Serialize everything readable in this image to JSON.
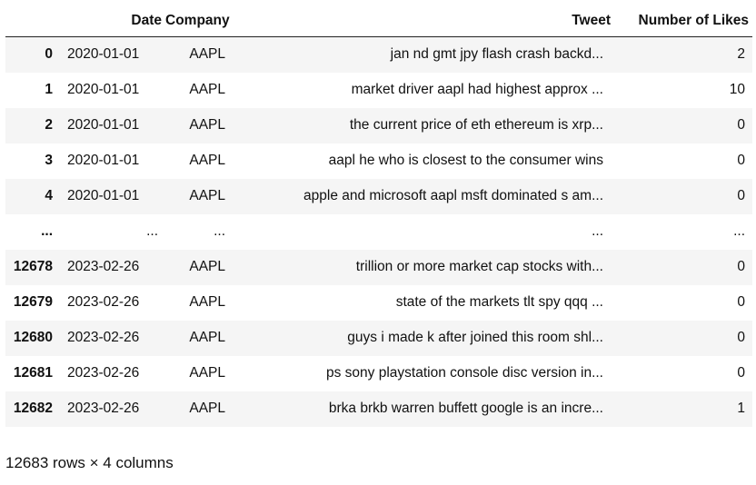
{
  "dataframe": {
    "columns": [
      "Date",
      "Company",
      "Tweet",
      "Number of Likes"
    ],
    "rows": [
      {
        "index": "0",
        "date": "2020-01-01",
        "company": "AAPL",
        "tweet": "jan nd gmt jpy flash crash backd...",
        "likes": "2"
      },
      {
        "index": "1",
        "date": "2020-01-01",
        "company": "AAPL",
        "tweet": "market driver aapl had highest approx ...",
        "likes": "10"
      },
      {
        "index": "2",
        "date": "2020-01-01",
        "company": "AAPL",
        "tweet": "the current price of eth ethereum is xrp...",
        "likes": "0"
      },
      {
        "index": "3",
        "date": "2020-01-01",
        "company": "AAPL",
        "tweet": "aapl he who is closest to the consumer wins",
        "likes": "0"
      },
      {
        "index": "4",
        "date": "2020-01-01",
        "company": "AAPL",
        "tweet": "apple and microsoft aapl msft dominated s am...",
        "likes": "0"
      },
      {
        "index": "...",
        "date": "...",
        "company": "...",
        "tweet": "...",
        "likes": "..."
      },
      {
        "index": "12678",
        "date": "2023-02-26",
        "company": "AAPL",
        "tweet": "trillion or more market cap stocks with...",
        "likes": "0"
      },
      {
        "index": "12679",
        "date": "2023-02-26",
        "company": "AAPL",
        "tweet": "state of the markets tlt spy qqq ...",
        "likes": "0"
      },
      {
        "index": "12680",
        "date": "2023-02-26",
        "company": "AAPL",
        "tweet": "guys i made k after joined this room shl...",
        "likes": "0"
      },
      {
        "index": "12681",
        "date": "2023-02-26",
        "company": "AAPL",
        "tweet": "ps sony playstation console disc version in...",
        "likes": "0"
      },
      {
        "index": "12682",
        "date": "2023-02-26",
        "company": "AAPL",
        "tweet": "brka brkb warren buffett google is an incre...",
        "likes": "1"
      }
    ],
    "shape_text": "12683 rows × 4 columns"
  }
}
